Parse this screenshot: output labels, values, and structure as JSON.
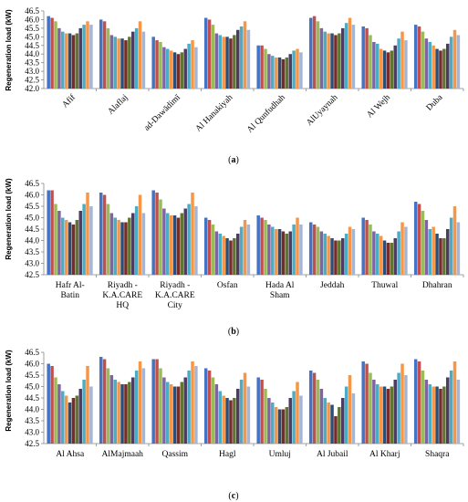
{
  "chart_data": [
    {
      "type": "bar",
      "panel_label": "(a)",
      "ylabel": "Regeneration load (kW)",
      "ylim": [
        42.0,
        46.5
      ],
      "yticks": [
        "42.0",
        "42.5",
        "43.0",
        "43.5",
        "44.0",
        "44.5",
        "45.0",
        "45.5",
        "46.0",
        "46.5"
      ],
      "categories": [
        "Afif",
        "Alaflaj",
        "ad-Dawādimī",
        "Al Hanakiyah",
        "Al Qunfudhah",
        "AlUyaynah",
        "Al Wejh",
        "Duba"
      ],
      "values": [
        [
          46.2,
          46.1,
          45.9,
          45.5,
          45.3,
          45.2,
          45.2,
          45.1,
          45.2,
          45.5,
          45.7,
          45.9,
          45.7
        ],
        [
          46.0,
          45.9,
          45.5,
          45.1,
          45.0,
          44.9,
          44.9,
          44.8,
          45.0,
          45.3,
          45.5,
          45.9,
          45.3
        ],
        [
          45.0,
          44.8,
          44.7,
          44.4,
          44.3,
          44.2,
          44.1,
          44.0,
          44.1,
          44.3,
          44.6,
          44.8,
          44.4
        ],
        [
          46.1,
          46.0,
          45.7,
          45.2,
          45.1,
          45.0,
          45.0,
          44.9,
          45.1,
          45.4,
          45.6,
          45.9,
          45.4
        ],
        [
          44.5,
          44.5,
          44.3,
          44.0,
          43.9,
          43.8,
          43.8,
          43.7,
          43.8,
          44.0,
          44.2,
          44.3,
          44.1
        ],
        [
          46.1,
          46.2,
          45.9,
          45.5,
          45.3,
          45.2,
          45.2,
          45.1,
          45.2,
          45.5,
          45.8,
          46.1,
          45.7
        ],
        [
          45.6,
          45.5,
          45.1,
          44.7,
          44.6,
          44.3,
          44.2,
          44.1,
          44.2,
          44.5,
          44.9,
          45.3,
          44.8
        ],
        [
          45.7,
          45.6,
          45.3,
          44.9,
          44.7,
          44.5,
          44.3,
          44.2,
          44.3,
          44.6,
          45.0,
          45.4,
          45.1
        ]
      ]
    },
    {
      "type": "bar",
      "panel_label": "(b)",
      "ylabel": "Regeneration load (kW)",
      "ylim": [
        42.5,
        46.5
      ],
      "yticks": [
        "42.5",
        "43.0",
        "43.5",
        "44.0",
        "44.5",
        "45.0",
        "45.5",
        "46.0",
        "46.5"
      ],
      "categories": [
        "Hafr Al-Batin",
        "Riyadh - K.A.CARE HQ",
        "Riyadh - K.A.CARE City",
        "Osfan",
        "Hada Al Sham",
        "Jeddah",
        "Thuwal",
        "Dhahran"
      ],
      "category_lines": [
        [
          "Hafr Al-",
          "Batin"
        ],
        [
          "Riyadh -",
          "K.A.CARE",
          "HQ"
        ],
        [
          "Riyadh -",
          "K.A.CARE",
          "City"
        ],
        [
          "Osfan"
        ],
        [
          "Hada Al",
          "Sham"
        ],
        [
          "Jeddah"
        ],
        [
          "Thuwal"
        ],
        [
          "Dhahran"
        ]
      ],
      "values": [
        [
          46.2,
          46.2,
          45.6,
          45.3,
          45.0,
          44.9,
          44.8,
          44.7,
          44.9,
          45.3,
          45.6,
          46.1,
          45.5
        ],
        [
          46.1,
          46.0,
          45.6,
          45.2,
          45.0,
          44.9,
          44.8,
          44.8,
          45.0,
          45.2,
          45.5,
          46.0,
          45.2
        ],
        [
          46.2,
          46.1,
          45.8,
          45.4,
          45.2,
          45.1,
          45.1,
          45.0,
          45.2,
          45.4,
          45.6,
          46.1,
          45.5
        ],
        [
          45.0,
          44.9,
          44.7,
          44.4,
          44.3,
          44.2,
          44.1,
          44.0,
          44.1,
          44.3,
          44.6,
          44.9,
          44.7
        ],
        [
          45.1,
          45.0,
          44.9,
          44.7,
          44.6,
          44.5,
          44.5,
          44.4,
          44.3,
          44.4,
          44.7,
          45.0,
          44.7
        ],
        [
          44.8,
          44.7,
          44.6,
          44.4,
          44.3,
          44.2,
          44.1,
          44.0,
          44.0,
          44.1,
          44.3,
          44.6,
          44.5
        ],
        [
          45.0,
          44.9,
          44.7,
          44.4,
          44.3,
          44.2,
          44.0,
          43.9,
          43.9,
          44.1,
          44.4,
          44.8,
          44.6
        ],
        [
          45.7,
          45.6,
          45.3,
          44.9,
          44.5,
          44.6,
          44.3,
          44.1,
          44.1,
          44.5,
          45.0,
          45.5,
          44.8
        ]
      ]
    },
    {
      "type": "bar",
      "panel_label": "(c)",
      "ylabel": "Regeneration load (kW)",
      "ylim": [
        42.5,
        46.5
      ],
      "yticks": [
        "42.5",
        "43.0",
        "43.5",
        "44.0",
        "44.5",
        "45.0",
        "45.5",
        "46.0",
        "46.5"
      ],
      "categories": [
        "Al Ahsa",
        "AlMajmaah",
        "Qassim",
        "Hagl",
        "Umluj",
        "Al Jubail",
        "Al Kharj",
        "Shaqra"
      ],
      "values": [
        [
          46.0,
          45.9,
          45.4,
          45.1,
          44.8,
          44.6,
          44.3,
          44.5,
          44.6,
          44.9,
          45.3,
          45.9,
          45.0
        ],
        [
          46.3,
          46.2,
          45.8,
          45.5,
          45.3,
          45.2,
          45.1,
          45.1,
          45.2,
          45.4,
          45.7,
          46.1,
          45.8
        ],
        [
          46.2,
          46.2,
          45.8,
          45.4,
          45.2,
          45.1,
          45.0,
          45.0,
          45.2,
          45.4,
          45.7,
          46.1,
          45.9
        ],
        [
          45.8,
          45.7,
          45.4,
          45.1,
          44.8,
          44.6,
          44.5,
          44.4,
          44.5,
          44.9,
          45.3,
          45.6,
          45.0
        ],
        [
          45.4,
          45.3,
          44.9,
          44.5,
          44.3,
          44.1,
          44.0,
          44.0,
          44.1,
          44.5,
          44.8,
          45.2,
          44.6
        ],
        [
          45.7,
          45.6,
          45.3,
          44.9,
          44.5,
          44.3,
          44.2,
          43.7,
          44.1,
          44.5,
          45.0,
          45.5,
          44.7
        ],
        [
          46.1,
          46.0,
          45.6,
          45.3,
          45.1,
          45.0,
          45.0,
          44.9,
          45.0,
          45.3,
          45.6,
          46.0,
          45.5
        ],
        [
          46.2,
          46.1,
          45.7,
          45.3,
          45.1,
          45.0,
          45.0,
          44.9,
          45.0,
          45.4,
          45.7,
          46.1,
          45.3
        ]
      ]
    }
  ],
  "series_colors": [
    "#4472C4",
    "#C0504D",
    "#9BBB59",
    "#8064A2",
    "#4BACC6",
    "#F79646",
    "#2C4D75",
    "#772C2A",
    "#5F7530",
    "#4D3B62",
    "#4BACC6",
    "#F79646",
    "#A5B5D6"
  ],
  "panels": {
    "a_label": "(a)",
    "b_label": "(b)",
    "c_label": "(c)"
  }
}
